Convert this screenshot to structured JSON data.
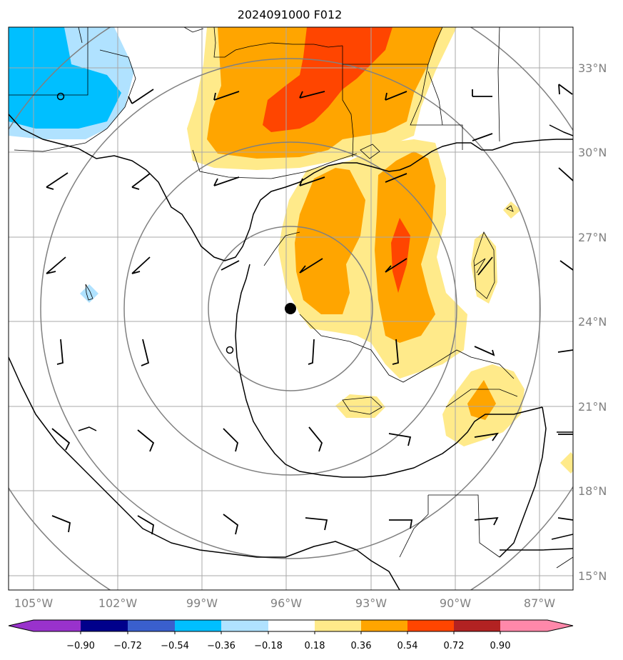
{
  "title": "2024091000 F012",
  "lon_ticks": [
    "105°W",
    "102°W",
    "99°W",
    "96°W",
    "93°W",
    "90°W",
    "87°W"
  ],
  "lat_ticks": [
    "33°N",
    "30°N",
    "27°N",
    "24°N",
    "21°N",
    "18°N",
    "15°N"
  ],
  "colorbar": {
    "tick_labels": [
      "−0.90",
      "−0.72",
      "−0.54",
      "−0.36",
      "−0.18",
      "0.18",
      "0.36",
      "0.54",
      "0.72",
      "0.90"
    ],
    "colors": [
      "#9932cc",
      "#00008b",
      "#3a5fcd",
      "#00bfff",
      "#b0e2ff",
      "#ffffff",
      "#ffea8a",
      "#ffa500",
      "#ff4500",
      "#b22222",
      "#ff88aa"
    ]
  },
  "storm_center": {
    "lon": -95.9,
    "lat": 24.5
  },
  "range_rings": 4
}
